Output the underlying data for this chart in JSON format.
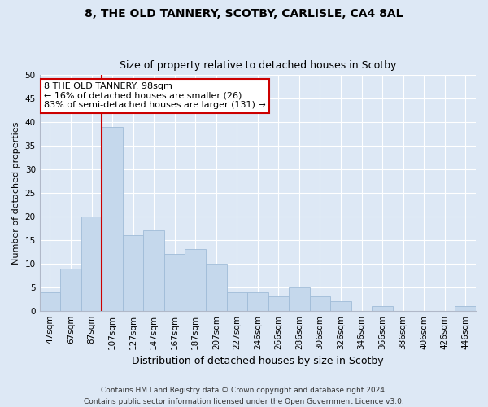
{
  "title": "8, THE OLD TANNERY, SCOTBY, CARLISLE, CA4 8AL",
  "subtitle": "Size of property relative to detached houses in Scotby",
  "xlabel": "Distribution of detached houses by size in Scotby",
  "ylabel": "Number of detached properties",
  "bar_color": "#c5d8ec",
  "bar_edge_color": "#a0bcd8",
  "bin_labels": [
    "47sqm",
    "67sqm",
    "87sqm",
    "107sqm",
    "127sqm",
    "147sqm",
    "167sqm",
    "187sqm",
    "207sqm",
    "227sqm",
    "246sqm",
    "266sqm",
    "286sqm",
    "306sqm",
    "326sqm",
    "346sqm",
    "366sqm",
    "386sqm",
    "406sqm",
    "426sqm",
    "446sqm"
  ],
  "bar_heights": [
    4,
    9,
    20,
    39,
    16,
    17,
    12,
    13,
    10,
    4,
    4,
    3,
    5,
    3,
    2,
    0,
    1,
    0,
    0,
    0,
    1
  ],
  "ylim": [
    0,
    50
  ],
  "yticks": [
    0,
    5,
    10,
    15,
    20,
    25,
    30,
    35,
    40,
    45,
    50
  ],
  "vline_after_bar": 2,
  "annotation_line1": "8 THE OLD TANNERY: 98sqm",
  "annotation_line2": "← 16% of detached houses are smaller (26)",
  "annotation_line3": "83% of semi-detached houses are larger (131) →",
  "annotation_box_color": "#ffffff",
  "annotation_box_edge": "#cc0000",
  "vline_color": "#cc0000",
  "background_color": "#dde8f5",
  "plot_bg_color": "#dde8f5",
  "grid_color": "#ffffff",
  "footer_line1": "Contains HM Land Registry data © Crown copyright and database right 2024.",
  "footer_line2": "Contains public sector information licensed under the Open Government Licence v3.0.",
  "title_fontsize": 10,
  "subtitle_fontsize": 9,
  "ylabel_fontsize": 8,
  "xlabel_fontsize": 9,
  "tick_fontsize": 7.5,
  "annotation_fontsize": 8,
  "footer_fontsize": 6.5
}
